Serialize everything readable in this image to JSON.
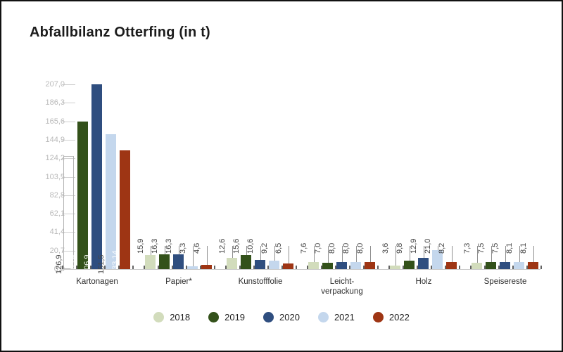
{
  "window": {
    "title": "Abfallbilanz Otterfing (in t)"
  },
  "chart_data": {
    "type": "bar",
    "title": "Abfallbilanz Otterfing (in t)",
    "unit": "t",
    "legend_position": "bottom",
    "grid": "tick-stubs-left-only",
    "categories": [
      "Kartonagen",
      "Papier*",
      "Kunstofffolie",
      "Leicht-\nverpackung",
      "Holz",
      "Speisereste"
    ],
    "series": [
      {
        "name": "2018",
        "color": "#d2dcbc",
        "light": true,
        "values": [
          126.9,
          15.9,
          12.6,
          7.6,
          3.6,
          7.3
        ]
      },
      {
        "name": "2019",
        "color": "#33511a",
        "light": false,
        "values": [
          165.4,
          16.3,
          15.6,
          7.0,
          9.8,
          7.5
        ]
      },
      {
        "name": "2020",
        "color": "#2f4e7f",
        "light": false,
        "values": [
          206.9,
          16.3,
          10.6,
          8.0,
          12.9,
          7.5
        ]
      },
      {
        "name": "2021",
        "color": "#c4d7ed",
        "light": true,
        "values": [
          151.5,
          3.3,
          9.2,
          8.0,
          21.0,
          8.1
        ]
      },
      {
        "name": "2022",
        "color": "#9e3514",
        "light": false,
        "values": [
          133.14,
          4.6,
          6.5,
          8.0,
          8.2,
          8.1
        ]
      }
    ],
    "value_labels": [
      [
        "126,9",
        "165,4",
        "206,9",
        "151,5",
        "133,14"
      ],
      [
        "15,9",
        "16,3",
        "16,3",
        "3,3",
        "4,6"
      ],
      [
        "12,6",
        "15,6",
        "10,6",
        "9,2",
        "6,5"
      ],
      [
        "7,6",
        "7,0",
        "8,0",
        "8,0",
        "8,0"
      ],
      [
        "3,6",
        "9,8",
        "12,9",
        "21,0",
        "8,2"
      ],
      [
        "7,3",
        "7,5",
        "7,5",
        "8,1",
        "8,1"
      ]
    ],
    "y_axis": {
      "ticks": [
        "0,0",
        "20,7",
        "41,4",
        "62,1",
        "82,8",
        "103,5",
        "124,2",
        "144,9",
        "165,6",
        "186,3",
        "207,0"
      ],
      "min": 0,
      "max": 207
    },
    "outlined_bar": {
      "series": "2018",
      "category": "Kartonagen"
    }
  }
}
